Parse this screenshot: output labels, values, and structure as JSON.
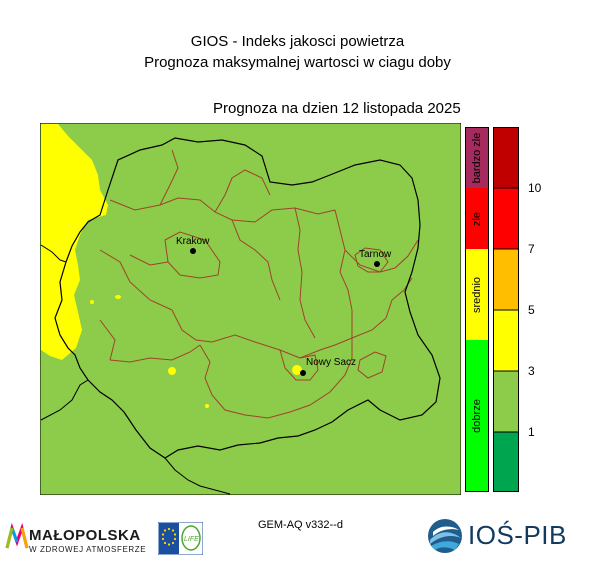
{
  "title": {
    "line1": "GIOS - Indeks jakosci powietrza",
    "line2": "Prognoza maksymalnej wartosci w ciagu doby",
    "date": "Prognoza na dzien  12 listopada 2025"
  },
  "map": {
    "background_color": "#8ccc4a",
    "moderate_color": "#ffff00",
    "border_color": "#000000",
    "district_color": "#a0422a",
    "cities": [
      {
        "name": "Krakow"
      },
      {
        "name": "Tarnow"
      },
      {
        "name": "Nowy Sacz"
      }
    ]
  },
  "legend": {
    "categories": [
      {
        "label": "bardzo zle",
        "color": "#a62a5e"
      },
      {
        "label": "zle",
        "color": "#ff0000"
      },
      {
        "label": "srednio",
        "color": "#ffff00"
      },
      {
        "label": "dobrze",
        "color": "#00ff00"
      }
    ],
    "index_colors": [
      "#c00000",
      "#ff0000",
      "#ff0000",
      "#ffbf00",
      "#ffff00",
      "#8ccc4a",
      "#00a550"
    ],
    "ticks": [
      "10",
      "7",
      "5",
      "3",
      "1"
    ]
  },
  "footer": {
    "model": "GEM-AQ v332--d",
    "malopolska_name": "MAŁOPOLSKA",
    "malopolska_slogan": "W ZDROWEJ ATMOSFERZE",
    "life_logo_text": "LIFE",
    "ios_name": "IOŚ-PIB"
  }
}
